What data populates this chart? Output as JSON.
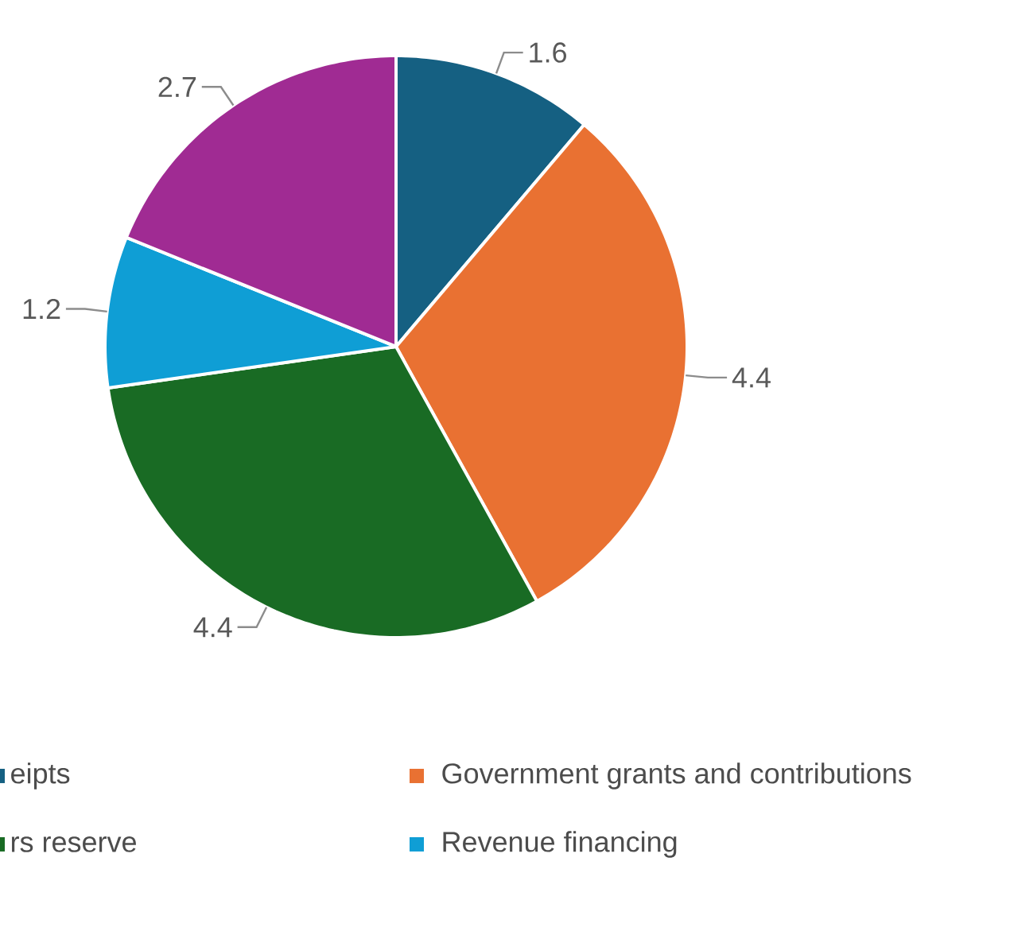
{
  "chart_data": {
    "type": "pie",
    "categories": [
      "eipts",
      "Government grants and contributions",
      "rs reserve",
      "Revenue financing",
      null
    ],
    "values": [
      1.6,
      4.4,
      4.4,
      1.2,
      2.7
    ],
    "colors": [
      "#156082",
      "#e97132",
      "#196b24",
      "#0f9ed5",
      "#a02b93"
    ],
    "data_labels": true,
    "legend": "bottom"
  }
}
